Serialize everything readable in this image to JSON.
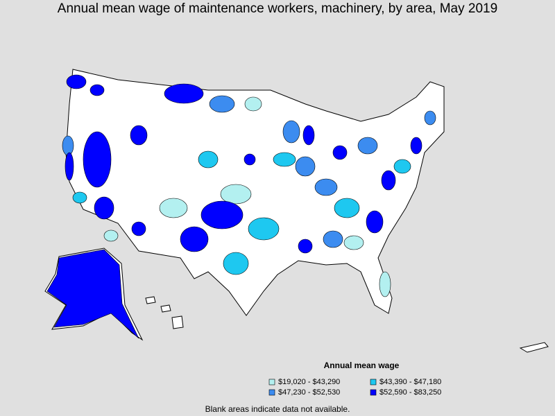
{
  "title": "Annual mean wage of maintenance workers, machinery, by area, May 2019",
  "legend": {
    "title": "Annual mean wage",
    "items": [
      {
        "label": "$19,020 - $43,290",
        "color": "#b3f0f0"
      },
      {
        "label": "$43,390 - $47,180",
        "color": "#1ec8f0"
      },
      {
        "label": "$47,230 - $52,530",
        "color": "#3c8cf0"
      },
      {
        "label": "$52,590 - $83,250",
        "color": "#0000ff"
      }
    ]
  },
  "note": "Blank areas indicate data not available."
}
